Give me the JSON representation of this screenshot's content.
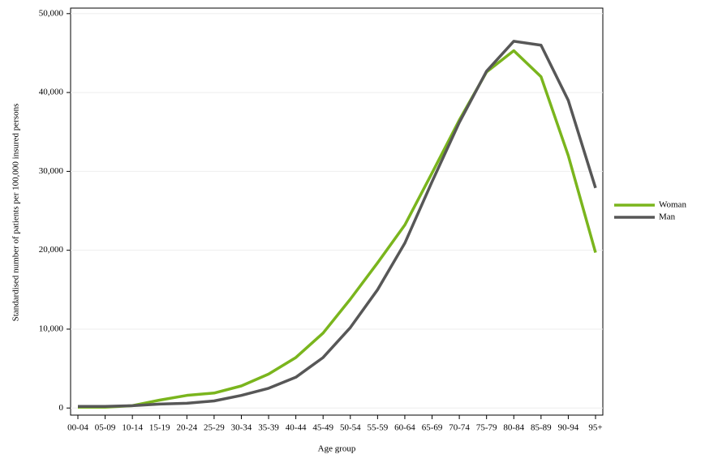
{
  "chart_data": {
    "type": "line",
    "x_label": "Age group",
    "y_label": "Standardised number of patients per 100,000 insured persons",
    "categories": [
      "00-04",
      "05-09",
      "10-14",
      "15-19",
      "20-24",
      "25-29",
      "30-34",
      "35-39",
      "40-44",
      "45-49",
      "50-54",
      "55-59",
      "60-64",
      "65-69",
      "70-74",
      "75-79",
      "80-84",
      "85-89",
      "90-94",
      "95+"
    ],
    "series": [
      {
        "name": "Woman",
        "color": "#7ab51d",
        "values": [
          100,
          100,
          300,
          1000,
          1600,
          1900,
          2800,
          4300,
          6400,
          9500,
          13800,
          18400,
          23200,
          29800,
          36500,
          42600,
          45300,
          42000,
          32000,
          19700
        ]
      },
      {
        "name": "Man",
        "color": "#575757",
        "values": [
          200,
          200,
          300,
          500,
          600,
          900,
          1600,
          2500,
          3900,
          6400,
          10200,
          15000,
          20900,
          28700,
          36200,
          42700,
          46500,
          46000,
          39000,
          27900
        ]
      }
    ],
    "ylim": [
      -900,
      50700
    ],
    "yticks": [
      0,
      {
        "value": 10000,
        "label": "10,000"
      },
      {
        "value": 20000,
        "label": "20,000"
      },
      {
        "value": 30000,
        "label": "30,000"
      },
      {
        "value": 40000,
        "label": "40,000"
      },
      {
        "value": 50000,
        "label": "50,000"
      }
    ],
    "grid": true,
    "legend": "right"
  }
}
